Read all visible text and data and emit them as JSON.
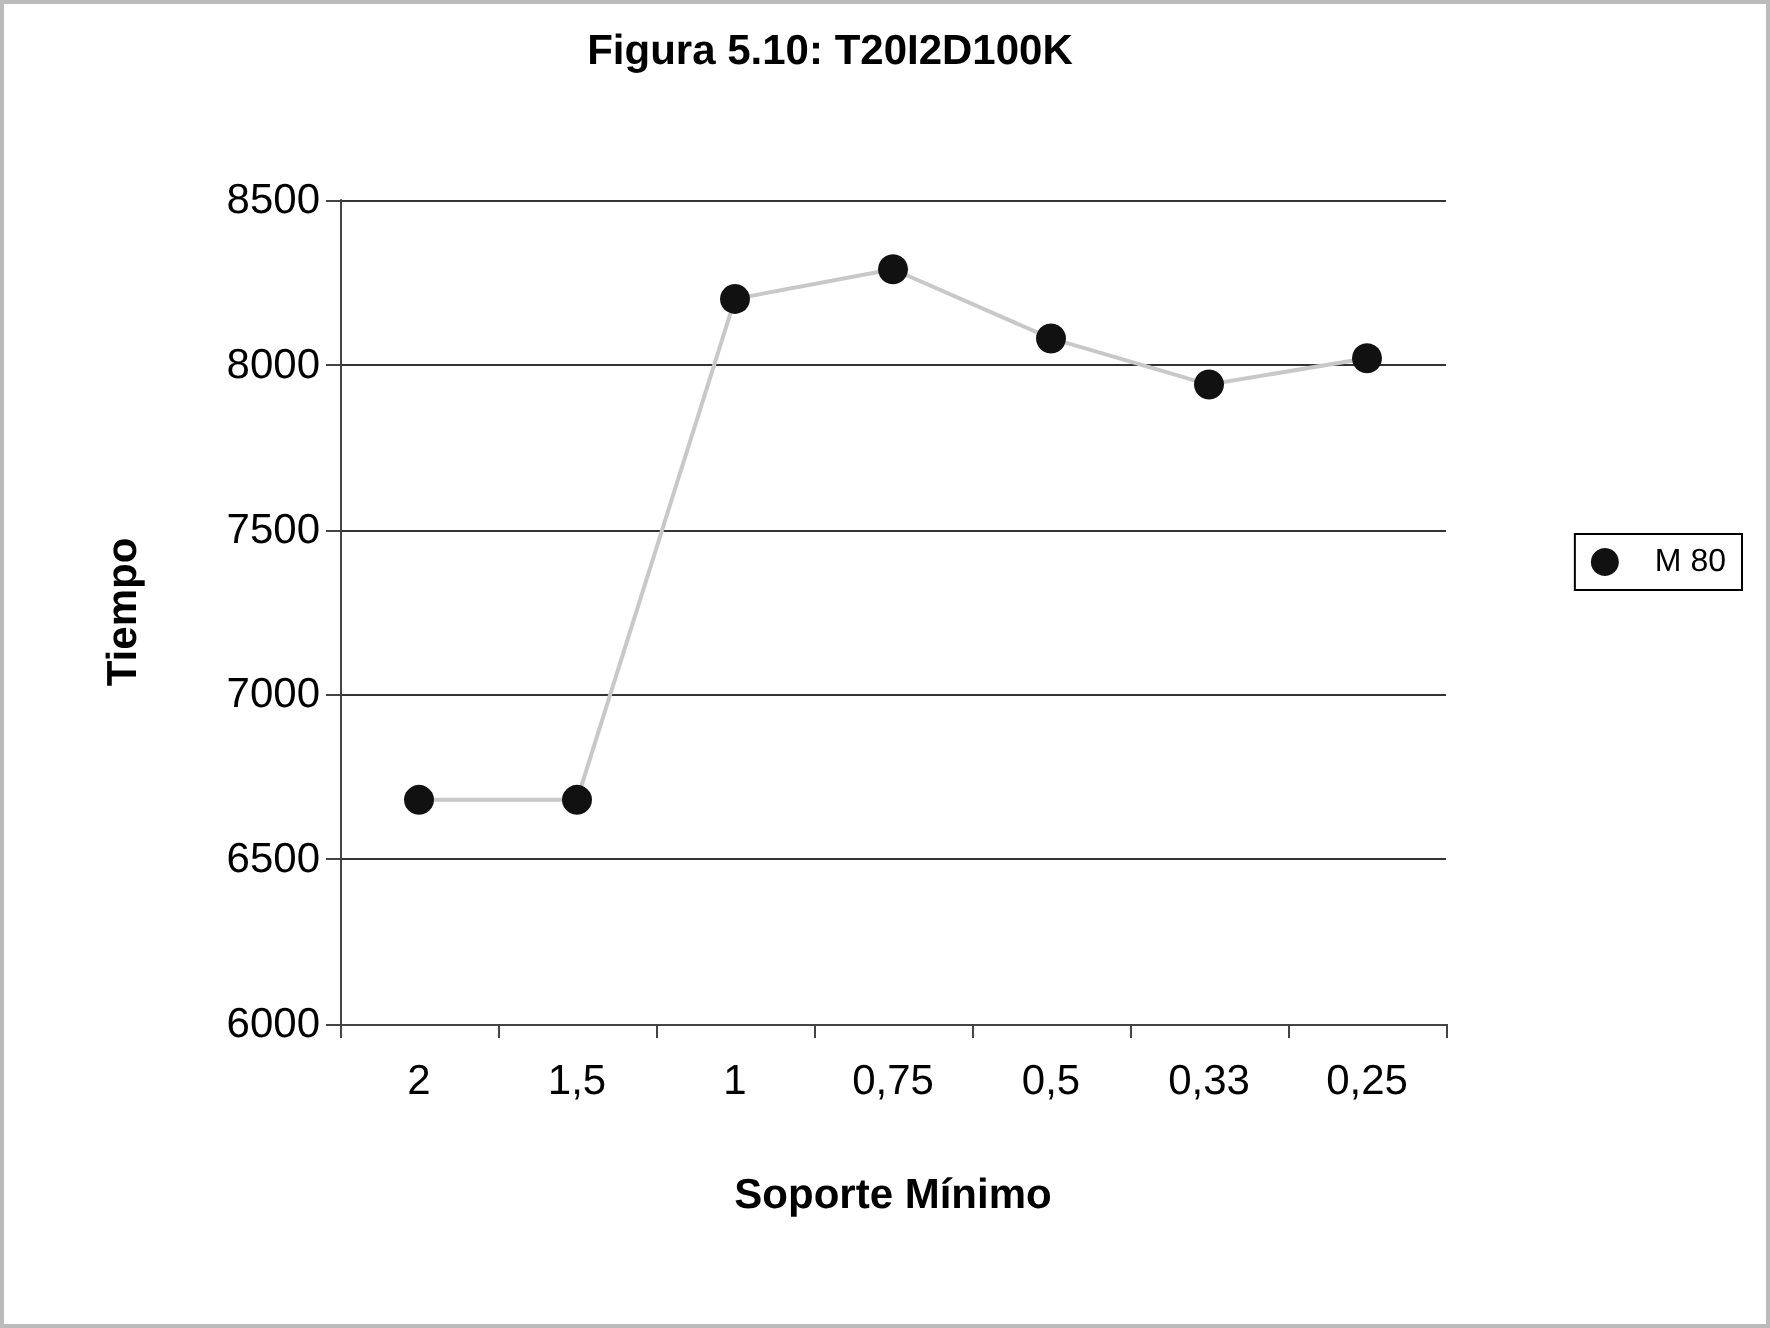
{
  "chart_data": {
    "type": "line",
    "title": "Figura 5.10: T20I2D100K",
    "xlabel": "Soporte Mínimo",
    "ylabel": "Tiempo",
    "categories": [
      "2",
      "1,5",
      "1",
      "0,75",
      "0,5",
      "0,33",
      "0,25"
    ],
    "series": [
      {
        "name": "M 80",
        "color": "#111111",
        "values": [
          6680,
          6680,
          8200,
          8290,
          8080,
          7940,
          8020
        ]
      }
    ],
    "ylim": [
      6000,
      8500
    ],
    "yticks": [
      6000,
      6500,
      7000,
      7500,
      8000,
      8500
    ],
    "grid": "y",
    "legend": "right",
    "marker": "circle",
    "line_style": "solid"
  }
}
